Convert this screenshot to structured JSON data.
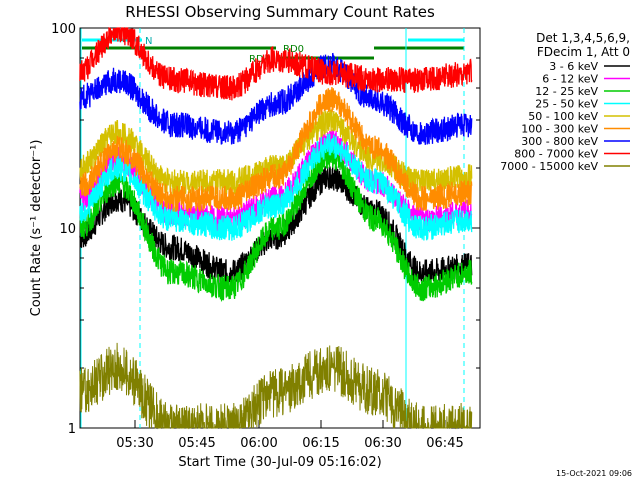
{
  "chart_data": {
    "type": "line",
    "title": "RHESSI Observing Summary Count Rates",
    "xlabel": "Start Time (30-Jul-09 05:16:02)",
    "ylabel": "Count Rate (s⁻¹ detector⁻¹)",
    "y_scale": "log",
    "ylim": [
      1,
      100
    ],
    "xlim": [
      "05:16:02",
      "06:52:00"
    ],
    "x_ticks": [
      "05:30",
      "05:45",
      "06:00",
      "06:15",
      "06:30",
      "06:45"
    ],
    "y_ticks": [
      "1",
      "10",
      "100"
    ],
    "timestamp": "15-Oct-2021 09:06",
    "legend": {
      "position": "right",
      "header": [
        "Det 1,3,4,5,6,9,",
        "FDecim 1, Att 0"
      ]
    },
    "series": [
      {
        "name": "3 - 6 keV",
        "color": "#000000",
        "values": [
          9,
          14,
          8,
          6,
          9,
          18,
          12,
          6,
          6.5
        ]
      },
      {
        "name": "6 - 12 keV",
        "color": "#ff00ff",
        "values": [
          14,
          22,
          12,
          11,
          14,
          27,
          17,
          11,
          12
        ]
      },
      {
        "name": "12 - 25 keV",
        "color": "#00cc00",
        "values": [
          10,
          17,
          6,
          5,
          10,
          23,
          11,
          5,
          6
        ]
      },
      {
        "name": "25 - 50 keV",
        "color": "#00ffff",
        "values": [
          12,
          20,
          11,
          10,
          13,
          26,
          17,
          10,
          11
        ]
      },
      {
        "name": "50 - 100 keV",
        "color": "#d4c000",
        "values": [
          20,
          30,
          17,
          17,
          20,
          34,
          22,
          17,
          18
        ]
      },
      {
        "name": "100 - 300 keV",
        "color": "#ff8c00",
        "values": [
          16,
          25,
          14,
          14,
          18,
          44,
          25,
          14,
          15
        ]
      },
      {
        "name": "300 - 800 keV",
        "color": "#0000ff",
        "values": [
          45,
          55,
          33,
          30,
          42,
          65,
          43,
          30,
          33
        ]
      },
      {
        "name": "800 - 7000 keV",
        "color": "#ff0000",
        "values": [
          60,
          98,
          55,
          50,
          70,
          60,
          55,
          55,
          60
        ]
      },
      {
        "name": "7000 - 15000 keV",
        "color": "#808000",
        "values": [
          1.5,
          2.0,
          1.0,
          1.0,
          1.5,
          2.0,
          1.5,
          1.0,
          1.0
        ]
      }
    ],
    "x_points": [
      "05:16",
      "05:25",
      "05:38",
      "05:52",
      "06:03",
      "06:16",
      "06:27",
      "06:38",
      "06:50"
    ],
    "annotations": {
      "rd4": "RD4",
      "rd0": "RD0",
      "n": "N"
    }
  }
}
